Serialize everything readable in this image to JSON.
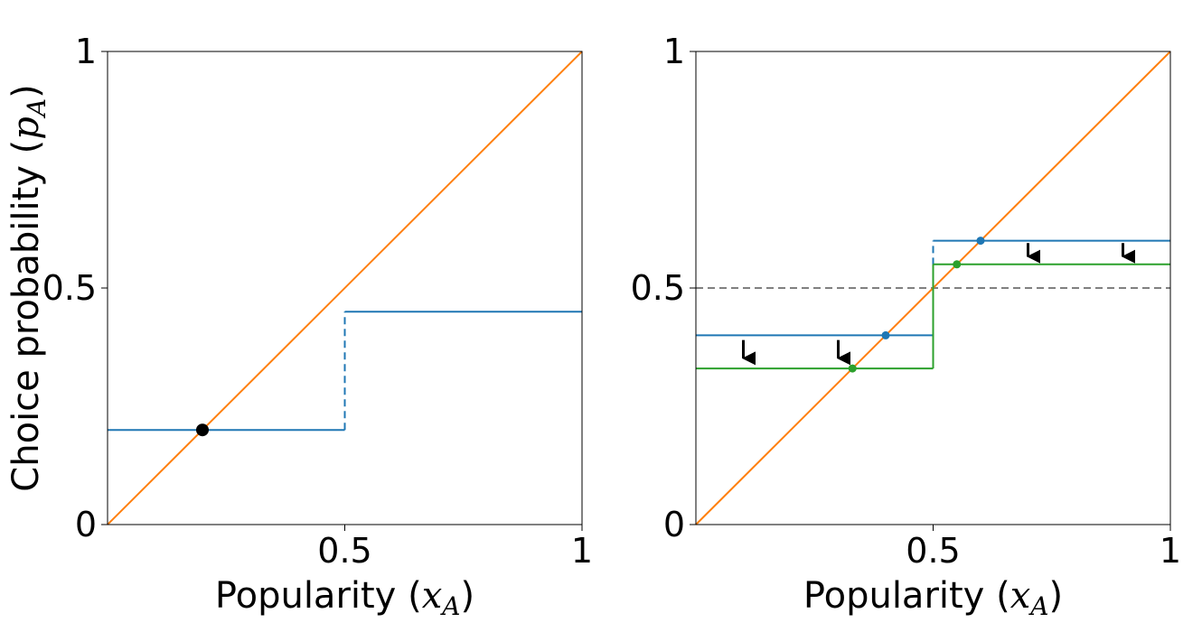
{
  "chart_data": [
    {
      "type": "line",
      "title": "",
      "xlabel_text": "Popularity (",
      "xlabel_math": "x",
      "xlabel_sub": "A",
      "xlabel_close": ")",
      "ylabel_text": "Choice probability (",
      "ylabel_math": "p",
      "ylabel_sub": "A",
      "ylabel_close": ")",
      "xlim": [
        0,
        1
      ],
      "ylim": [
        0,
        1
      ],
      "xticks": [
        {
          "value": 0.5,
          "label": "0.5"
        },
        {
          "value": 1,
          "label": "1"
        }
      ],
      "yticks": [
        {
          "value": 0,
          "label": "0"
        },
        {
          "value": 0.5,
          "label": "0.5"
        },
        {
          "value": 1,
          "label": "1"
        }
      ],
      "grid": false,
      "colors": {
        "blue": "#1f77b4",
        "orange": "#ff7f0e",
        "black": "#000000"
      },
      "series": [
        {
          "kind": "diagonal",
          "color": "#ff7f0e",
          "x": [
            0,
            1
          ],
          "y": [
            0,
            1
          ]
        },
        {
          "kind": "step",
          "color": "#1f77b4",
          "x": [
            0,
            0.5
          ],
          "y": [
            0.2,
            0.2
          ]
        },
        {
          "kind": "step",
          "color": "#1f77b4",
          "x": [
            0.5,
            1
          ],
          "y": [
            0.45,
            0.45
          ]
        },
        {
          "kind": "jump",
          "color": "#1f77b4",
          "dashed": true,
          "x": [
            0.5,
            0.5
          ],
          "y": [
            0.2,
            0.45
          ]
        }
      ],
      "points": [
        {
          "x": 0.2,
          "y": 0.2,
          "color": "#000000",
          "size": "large"
        }
      ]
    },
    {
      "type": "line",
      "title": "",
      "xlabel_text": "Popularity (",
      "xlabel_math": "x",
      "xlabel_sub": "A",
      "xlabel_close": ")",
      "xlim": [
        0,
        1
      ],
      "ylim": [
        0,
        1
      ],
      "xticks": [
        {
          "value": 0.5,
          "label": "0.5"
        },
        {
          "value": 1,
          "label": "1"
        }
      ],
      "yticks": [
        {
          "value": 0,
          "label": "0"
        },
        {
          "value": 0.5,
          "label": "0.5"
        },
        {
          "value": 1,
          "label": "1"
        }
      ],
      "grid": false,
      "colors": {
        "blue": "#1f77b4",
        "orange": "#ff7f0e",
        "green": "#2ca02c",
        "gray": "#808080"
      },
      "series": [
        {
          "kind": "reference",
          "color": "#808080",
          "dashed": true,
          "x": [
            0,
            1
          ],
          "y": [
            0.5,
            0.5
          ]
        },
        {
          "kind": "diagonal",
          "color": "#ff7f0e",
          "x": [
            0,
            1
          ],
          "y": [
            0,
            1
          ]
        },
        {
          "kind": "step",
          "color": "#1f77b4",
          "x": [
            0,
            0.5
          ],
          "y": [
            0.4,
            0.4
          ]
        },
        {
          "kind": "step",
          "color": "#1f77b4",
          "x": [
            0.5,
            1
          ],
          "y": [
            0.6,
            0.6
          ]
        },
        {
          "kind": "jump",
          "color": "#1f77b4",
          "dashed": true,
          "x": [
            0.5,
            0.5
          ],
          "y": [
            0.4,
            0.6
          ]
        },
        {
          "kind": "step",
          "color": "#2ca02c",
          "x": [
            0,
            0.5
          ],
          "y": [
            0.33,
            0.33
          ]
        },
        {
          "kind": "step",
          "color": "#2ca02c",
          "x": [
            0.5,
            1
          ],
          "y": [
            0.55,
            0.55
          ]
        },
        {
          "kind": "jump",
          "color": "#2ca02c",
          "dashed": false,
          "x": [
            0.5,
            0.5
          ],
          "y": [
            0.33,
            0.55
          ]
        }
      ],
      "points": [
        {
          "x": 0.4,
          "y": 0.4,
          "color": "#1f77b4",
          "size": "small"
        },
        {
          "x": 0.6,
          "y": 0.6,
          "color": "#1f77b4",
          "size": "small"
        },
        {
          "x": 0.33,
          "y": 0.33,
          "color": "#2ca02c",
          "size": "small"
        },
        {
          "x": 0.55,
          "y": 0.55,
          "color": "#2ca02c",
          "size": "small"
        }
      ],
      "arrows": [
        {
          "x": 0.1,
          "y_from": 0.39,
          "y_to": 0.34
        },
        {
          "x": 0.3,
          "y_from": 0.39,
          "y_to": 0.34
        },
        {
          "x": 0.7,
          "y_from": 0.595,
          "y_to": 0.555
        },
        {
          "x": 0.9,
          "y_from": 0.595,
          "y_to": 0.555
        }
      ]
    }
  ]
}
